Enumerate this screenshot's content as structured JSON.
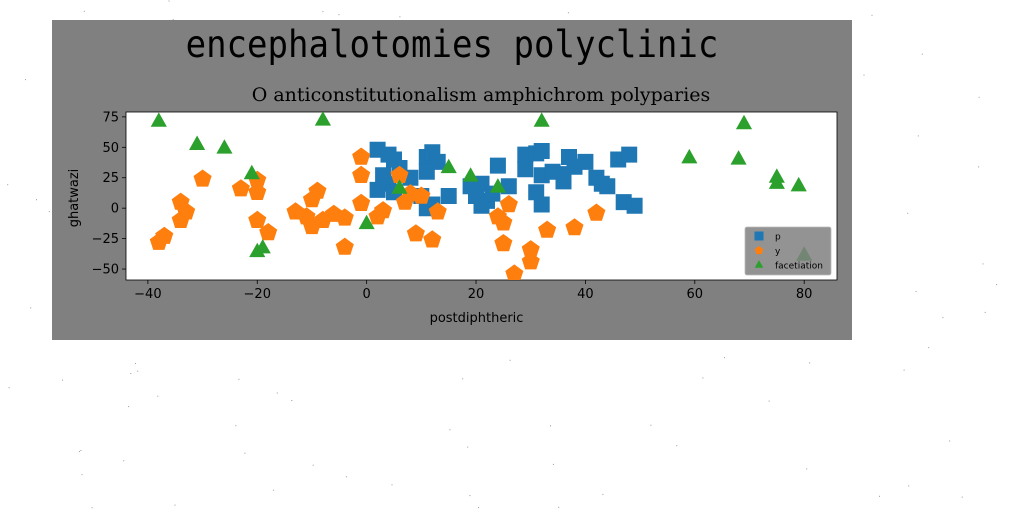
{
  "figure": {
    "suptitle": "encephalotomies polyclinic",
    "background": "#808080"
  },
  "chart_data": {
    "type": "scatter",
    "title": "O anticonstitutionalism amphichrom polyparies",
    "xlabel": "postdiphtheric",
    "ylabel": "ghatwazi",
    "xlim": [
      -44,
      86
    ],
    "ylim": [
      -59,
      79
    ],
    "xticks": [
      -40,
      -20,
      0,
      20,
      40,
      60,
      80
    ],
    "yticks": [
      75,
      50,
      25,
      0,
      -25,
      -50
    ],
    "grid": false,
    "legend_position": "lower-right",
    "series": [
      {
        "name": "p",
        "marker": "square",
        "color": "#1f77b4",
        "points": [
          [
            2,
            48
          ],
          [
            4,
            44
          ],
          [
            5,
            40
          ],
          [
            6,
            33
          ],
          [
            3,
            27
          ],
          [
            4,
            20
          ],
          [
            2,
            15
          ],
          [
            5,
            13
          ],
          [
            8,
            25
          ],
          [
            11,
            42
          ],
          [
            12,
            46
          ],
          [
            13,
            38
          ],
          [
            11,
            30
          ],
          [
            10,
            10
          ],
          [
            12,
            3
          ],
          [
            11,
            0
          ],
          [
            15,
            10
          ],
          [
            19,
            18
          ],
          [
            20,
            10
          ],
          [
            21,
            20
          ],
          [
            22,
            6
          ],
          [
            21,
            2
          ],
          [
            23,
            12
          ],
          [
            24,
            35
          ],
          [
            26,
            18
          ],
          [
            29,
            44
          ],
          [
            29,
            32
          ],
          [
            31,
            45
          ],
          [
            32,
            47
          ],
          [
            31,
            13
          ],
          [
            32,
            27
          ],
          [
            32,
            3
          ],
          [
            34,
            30
          ],
          [
            36,
            28
          ],
          [
            36,
            22
          ],
          [
            37,
            42
          ],
          [
            38,
            34
          ],
          [
            40,
            38
          ],
          [
            42,
            25
          ],
          [
            43,
            20
          ],
          [
            44,
            18
          ],
          [
            46,
            40
          ],
          [
            48,
            44
          ],
          [
            47,
            5
          ],
          [
            49,
            2
          ]
        ]
      },
      {
        "name": "y",
        "marker": "pentagon",
        "color": "#ff7f0e",
        "points": [
          [
            -38,
            -28
          ],
          [
            -37,
            -23
          ],
          [
            -34,
            5
          ],
          [
            -33,
            -3
          ],
          [
            -34,
            -10
          ],
          [
            -30,
            24
          ],
          [
            -23,
            16
          ],
          [
            -20,
            13
          ],
          [
            -20,
            23
          ],
          [
            -20,
            -10
          ],
          [
            -18,
            -20
          ],
          [
            -13,
            -3
          ],
          [
            -11,
            -7
          ],
          [
            -10,
            7
          ],
          [
            -9,
            14
          ],
          [
            -10,
            -15
          ],
          [
            -8,
            -10
          ],
          [
            -6,
            -5
          ],
          [
            -4,
            -8
          ],
          [
            -4,
            -32
          ],
          [
            -1,
            42
          ],
          [
            -1,
            27
          ],
          [
            -1,
            4
          ],
          [
            2,
            -7
          ],
          [
            3,
            -2
          ],
          [
            6,
            27
          ],
          [
            7,
            5
          ],
          [
            8,
            12
          ],
          [
            10,
            10
          ],
          [
            9,
            -21
          ],
          [
            12,
            -26
          ],
          [
            13,
            -3
          ],
          [
            24,
            -7
          ],
          [
            25,
            -12
          ],
          [
            26,
            3
          ],
          [
            25,
            -29
          ],
          [
            27,
            -54
          ],
          [
            30,
            -34
          ],
          [
            30,
            -44
          ],
          [
            33,
            -18
          ],
          [
            38,
            -16
          ],
          [
            42,
            -4
          ]
        ]
      },
      {
        "name": "facetiation",
        "marker": "triangle",
        "color": "#2ca02c",
        "points": [
          [
            -38,
            71
          ],
          [
            -31,
            52
          ],
          [
            -26,
            49
          ],
          [
            -21,
            28
          ],
          [
            -20,
            -36
          ],
          [
            -19,
            -33
          ],
          [
            -8,
            72
          ],
          [
            0,
            -13
          ],
          [
            6,
            16
          ],
          [
            15,
            33
          ],
          [
            19,
            26
          ],
          [
            24,
            17
          ],
          [
            32,
            71
          ],
          [
            59,
            41
          ],
          [
            68,
            40
          ],
          [
            69,
            69
          ],
          [
            75,
            20
          ],
          [
            75,
            25
          ],
          [
            79,
            18
          ],
          [
            80,
            -39
          ]
        ]
      }
    ]
  }
}
